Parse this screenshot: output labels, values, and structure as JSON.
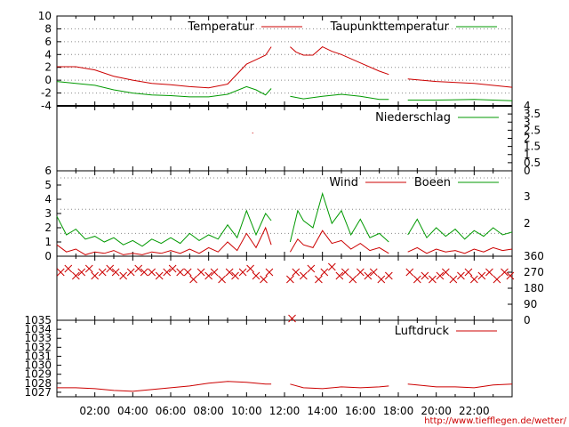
{
  "credit": "http://www.tiefflegen.de/wetter/",
  "colors": {
    "primary": "#cc0000",
    "secondary": "#009900",
    "grid": "#888888",
    "axis": "#000000"
  },
  "chart_data": [
    {
      "id": "temperature",
      "type": "line",
      "x_unit": "hours",
      "xlim": [
        0,
        24
      ],
      "ylim": [
        -4,
        10
      ],
      "y_ticks": [
        "10",
        "8",
        "6",
        "4",
        "2",
        "0",
        "-2",
        "-4"
      ],
      "grid": "dotted",
      "legend_position": "top-right",
      "series": [
        {
          "name": "Temperatur",
          "color": "#cc0000",
          "segments": [
            {
              "x": [
                0,
                1,
                2,
                3,
                4,
                5,
                6,
                7,
                8,
                9,
                10,
                10.5,
                11,
                11.3
              ],
              "y": [
                2.1,
                2.1,
                1.6,
                0.6,
                0.0,
                -0.5,
                -0.7,
                -1.0,
                -1.2,
                -0.6,
                2.5,
                3.2,
                3.9,
                5.2
              ]
            },
            {
              "x": [
                12.3,
                12.6,
                13,
                13.5,
                14,
                14.5,
                15,
                16,
                17,
                17.5
              ],
              "y": [
                5.2,
                4.4,
                3.9,
                3.9,
                5.2,
                4.5,
                4.0,
                2.7,
                1.4,
                0.9
              ]
            },
            {
              "x": [
                18.5,
                20,
                22,
                24
              ],
              "y": [
                0.2,
                -0.2,
                -0.5,
                -1.1
              ]
            }
          ]
        },
        {
          "name": "Taupunkttemperatur",
          "color": "#009900",
          "segments": [
            {
              "x": [
                0,
                1,
                2,
                3,
                4,
                5,
                6,
                7,
                8,
                9,
                10,
                10.5,
                11,
                11.3
              ],
              "y": [
                -0.2,
                -0.5,
                -0.8,
                -1.5,
                -2.0,
                -2.3,
                -2.4,
                -2.6,
                -2.6,
                -2.2,
                -1.0,
                -1.5,
                -2.3,
                -1.3
              ]
            },
            {
              "x": [
                12.3,
                13,
                14,
                15,
                16,
                17,
                17.5
              ],
              "y": [
                -2.5,
                -2.9,
                -2.5,
                -2.2,
                -2.5,
                -3.0,
                -3.0
              ]
            },
            {
              "x": [
                18.5,
                20,
                22,
                24
              ],
              "y": [
                -3.1,
                -3.1,
                -3.0,
                -3.2
              ]
            }
          ]
        }
      ]
    },
    {
      "id": "precipitation",
      "type": "line",
      "xlim": [
        0,
        24
      ],
      "ylim": [
        0,
        4
      ],
      "y_ticks_right": [
        "4",
        "3.5",
        "3",
        "2.5",
        "2",
        "1.5",
        "1",
        "0.5",
        "0"
      ],
      "legend_position": "top-right",
      "series": [
        {
          "name": "Niederschlag",
          "color": "#009900",
          "x": [],
          "values": []
        }
      ]
    },
    {
      "id": "wind",
      "type": "line",
      "xlim": [
        0,
        24
      ],
      "ylim": [
        0,
        6
      ],
      "y_ticks_left": [
        "6",
        "5",
        "4",
        "3",
        "2",
        "1",
        "0"
      ],
      "y_ticks_right_bft": [
        "3",
        "2"
      ],
      "grid": "dotted",
      "legend_position": "top-right",
      "series": [
        {
          "name": "Wind",
          "color": "#cc0000",
          "segments": [
            {
              "x": [
                0,
                0.5,
                1,
                1.5,
                2,
                2.5,
                3,
                3.5,
                4,
                4.5,
                5,
                5.5,
                6,
                6.5,
                7,
                7.5,
                8,
                8.5,
                9,
                9.5,
                10,
                10.5,
                11,
                11.3
              ],
              "y": [
                0.8,
                0.3,
                0.5,
                0.1,
                0.3,
                0.2,
                0.4,
                0.1,
                0.2,
                0.1,
                0.3,
                0.2,
                0.4,
                0.2,
                0.5,
                0.2,
                0.6,
                0.3,
                1.0,
                0.4,
                1.6,
                0.6,
                2.0,
                0.8
              ]
            },
            {
              "x": [
                12.3,
                12.7,
                13,
                13.5,
                14,
                14.5,
                15,
                15.5,
                16,
                16.5,
                17,
                17.5
              ],
              "y": [
                0.3,
                1.2,
                0.8,
                0.6,
                1.8,
                0.9,
                1.1,
                0.5,
                0.9,
                0.4,
                0.6,
                0.2
              ]
            },
            {
              "x": [
                18.5,
                19,
                19.5,
                20,
                20.5,
                21,
                21.5,
                22,
                22.5,
                23,
                23.5,
                24
              ],
              "y": [
                0.3,
                0.6,
                0.2,
                0.5,
                0.3,
                0.4,
                0.2,
                0.5,
                0.3,
                0.6,
                0.4,
                0.5
              ]
            }
          ]
        },
        {
          "name": "Boeen",
          "color": "#009900",
          "segments": [
            {
              "x": [
                0,
                0.5,
                1,
                1.5,
                2,
                2.5,
                3,
                3.5,
                4,
                4.5,
                5,
                5.5,
                6,
                6.5,
                7,
                7.5,
                8,
                8.5,
                9,
                9.5,
                10,
                10.5,
                11,
                11.3
              ],
              "y": [
                2.8,
                1.5,
                1.9,
                1.2,
                1.4,
                1.0,
                1.3,
                0.8,
                1.1,
                0.7,
                1.2,
                0.9,
                1.3,
                0.9,
                1.6,
                1.1,
                1.5,
                1.2,
                2.2,
                1.3,
                3.2,
                1.5,
                3.0,
                2.5
              ]
            },
            {
              "x": [
                12.3,
                12.7,
                13,
                13.5,
                14,
                14.5,
                15,
                15.5,
                16,
                16.5,
                17,
                17.5
              ],
              "y": [
                1.0,
                3.2,
                2.5,
                2.0,
                4.4,
                2.3,
                3.2,
                1.5,
                2.6,
                1.3,
                1.6,
                1.0
              ]
            },
            {
              "x": [
                18.5,
                19,
                19.5,
                20,
                20.5,
                21,
                21.5,
                22,
                22.5,
                23,
                23.5,
                24
              ],
              "y": [
                1.5,
                2.6,
                1.3,
                2.0,
                1.4,
                1.9,
                1.2,
                1.8,
                1.4,
                2.0,
                1.5,
                1.7
              ]
            }
          ]
        }
      ]
    },
    {
      "id": "wind_direction",
      "type": "scatter",
      "xlim": [
        0,
        24
      ],
      "ylim": [
        0,
        360
      ],
      "y_ticks_right": [
        "360",
        "270",
        "180",
        "90",
        "0"
      ],
      "series": [
        {
          "color": "#cc0000",
          "x": [
            0.2,
            0.6,
            1.0,
            1.3,
            1.7,
            2.0,
            2.4,
            2.8,
            3.1,
            3.5,
            3.9,
            4.3,
            4.6,
            5.0,
            5.4,
            5.8,
            6.1,
            6.5,
            6.9,
            7.2,
            7.6,
            8.0,
            8.3,
            8.7,
            9.1,
            9.4,
            9.8,
            10.2,
            10.5,
            10.9,
            11.2,
            12.3,
            12.6,
            13.0,
            13.4,
            13.8,
            14.1,
            14.5,
            14.9,
            15.2,
            15.6,
            16.0,
            16.4,
            16.7,
            17.1,
            17.5,
            18.6,
            19.0,
            19.4,
            19.8,
            20.2,
            20.5,
            20.9,
            21.3,
            21.7,
            22.0,
            22.4,
            22.8,
            23.2,
            23.6,
            23.9,
            12.4
          ],
          "y": [
            270,
            290,
            250,
            270,
            290,
            250,
            270,
            290,
            270,
            250,
            270,
            290,
            270,
            270,
            250,
            270,
            290,
            270,
            270,
            230,
            270,
            250,
            270,
            230,
            270,
            250,
            270,
            290,
            250,
            230,
            270,
            230,
            270,
            250,
            290,
            230,
            270,
            300,
            250,
            270,
            230,
            270,
            250,
            270,
            230,
            250,
            270,
            230,
            250,
            230,
            250,
            270,
            230,
            250,
            270,
            230,
            250,
            270,
            230,
            270,
            250,
            10
          ]
        }
      ]
    },
    {
      "id": "pressure",
      "type": "line",
      "xlim": [
        0,
        24
      ],
      "ylim": [
        1026.5,
        1035
      ],
      "y_ticks": [
        "1035",
        "1034",
        "1033",
        "1032",
        "1031",
        "1030",
        "1029",
        "1028",
        "1027"
      ],
      "legend_position": "top-right",
      "x_ticks": [
        "02:00",
        "04:00",
        "06:00",
        "08:00",
        "10:00",
        "12:00",
        "14:00",
        "16:00",
        "18:00",
        "20:00",
        "22:00"
      ],
      "series": [
        {
          "name": "Luftdruck",
          "color": "#cc0000",
          "segments": [
            {
              "x": [
                0,
                1,
                2,
                3,
                4,
                5,
                6,
                7,
                8,
                9,
                10,
                11,
                11.3
              ],
              "y": [
                1027.5,
                1027.5,
                1027.4,
                1027.2,
                1027.1,
                1027.3,
                1027.5,
                1027.7,
                1028.0,
                1028.2,
                1028.1,
                1027.9,
                1027.9
              ]
            },
            {
              "x": [
                12.3,
                13,
                14,
                15,
                16,
                17,
                17.5
              ],
              "y": [
                1027.9,
                1027.5,
                1027.4,
                1027.6,
                1027.5,
                1027.6,
                1027.7
              ]
            },
            {
              "x": [
                18.5,
                19,
                20,
                21,
                22,
                23,
                24
              ],
              "y": [
                1027.9,
                1027.8,
                1027.6,
                1027.6,
                1027.5,
                1027.8,
                1027.9
              ]
            }
          ]
        }
      ]
    }
  ]
}
